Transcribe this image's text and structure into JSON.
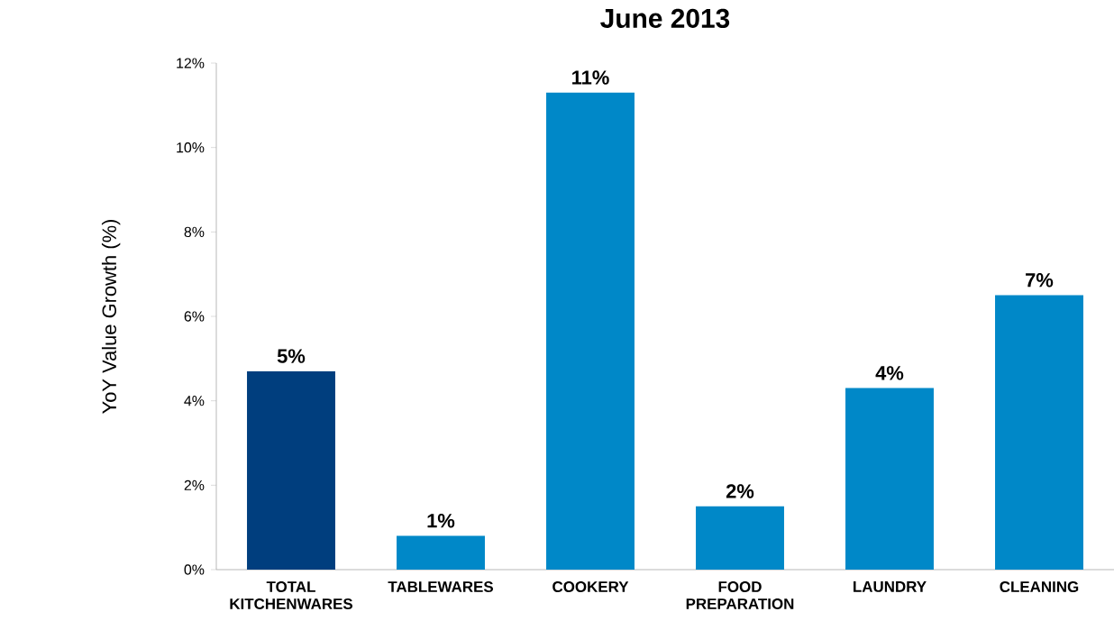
{
  "chart_data": {
    "type": "bar",
    "title": "June 2013",
    "ylabel": "YoY Value Growth (%)",
    "categories": [
      "TOTAL KITCHENWARES",
      "TABLEWARES",
      "COOKERY",
      "FOOD PREPARATION",
      "LAUNDRY",
      "CLEANING"
    ],
    "values": [
      4.7,
      0.8,
      11.3,
      1.5,
      4.3,
      6.5
    ],
    "colors": [
      "#003e7e",
      "#0088c8",
      "#0088c8",
      "#0088c8",
      "#0088c8",
      "#0088c8"
    ],
    "value_labels": [
      "5%",
      "1%",
      "11%",
      "2%",
      "4%",
      "7%"
    ],
    "ylim": [
      0,
      12
    ],
    "yticks": [
      {
        "value": 0,
        "label": "0%"
      },
      {
        "value": 2,
        "label": "2%"
      },
      {
        "value": 4,
        "label": "4%"
      },
      {
        "value": 6,
        "label": "6%"
      },
      {
        "value": 8,
        "label": "8%"
      },
      {
        "value": 10,
        "label": "10%"
      },
      {
        "value": 12,
        "label": "12%"
      }
    ]
  }
}
